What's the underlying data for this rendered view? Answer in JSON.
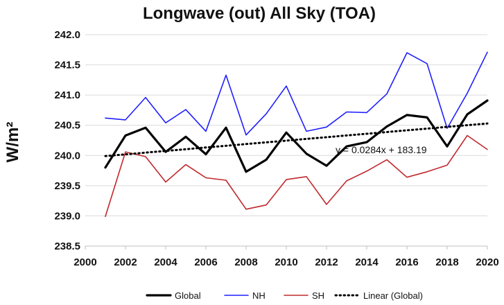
{
  "chart_data": {
    "type": "line",
    "title": "Longwave (out) All Sky (TOA)",
    "ylabel": "W/m²",
    "xlabel": "",
    "xlim": [
      2000,
      2020
    ],
    "ylim": [
      238.5,
      242.0
    ],
    "x_ticks": [
      2000,
      2002,
      2004,
      2006,
      2008,
      2010,
      2012,
      2014,
      2016,
      2018,
      2020
    ],
    "x_tick_labels": [
      "2000",
      "2002",
      "2004",
      "2006",
      "2008",
      "2010",
      "2012",
      "2014",
      "2016",
      "2018",
      "2020"
    ],
    "y_ticks": [
      238.5,
      239.0,
      239.5,
      240.0,
      240.5,
      241.0,
      241.5,
      242.0
    ],
    "y_tick_labels": [
      "238.5",
      "239.0",
      "239.5",
      "240.0",
      "240.5",
      "241.0",
      "241.5",
      "242.0"
    ],
    "grid": "horizontal",
    "legend_position": "bottom",
    "x": [
      2001,
      2002,
      2003,
      2004,
      2005,
      2006,
      2007,
      2008,
      2009,
      2010,
      2011,
      2012,
      2013,
      2014,
      2015,
      2016,
      2017,
      2018,
      2019,
      2020
    ],
    "series": [
      {
        "name": "Global",
        "color": "#000000",
        "values": [
          239.8,
          240.33,
          240.46,
          240.06,
          240.31,
          240.02,
          240.46,
          239.73,
          239.93,
          240.38,
          240.03,
          239.83,
          240.15,
          240.22,
          240.48,
          240.67,
          240.63,
          240.15,
          240.68,
          240.91
        ]
      },
      {
        "name": "NH",
        "color": "#1f1fff",
        "values": [
          240.62,
          240.59,
          240.96,
          240.54,
          240.76,
          240.4,
          241.33,
          240.34,
          240.69,
          241.15,
          240.4,
          240.47,
          240.72,
          240.71,
          241.02,
          241.7,
          241.52,
          240.45,
          241.03,
          241.71
        ]
      },
      {
        "name": "SH",
        "color": "#c0282d",
        "values": [
          238.99,
          240.06,
          239.98,
          239.56,
          239.85,
          239.63,
          239.59,
          239.11,
          239.18,
          239.6,
          239.65,
          239.19,
          239.58,
          239.74,
          239.93,
          239.64,
          239.73,
          239.84,
          240.33,
          240.1
        ]
      }
    ],
    "trendline": {
      "name": "Linear (Global)",
      "color": "#000000",
      "equation": "y = 0.0284x + 183.19",
      "x_start": 2001,
      "x_end": 2020,
      "y_start": 239.99,
      "y_end": 240.53
    }
  }
}
